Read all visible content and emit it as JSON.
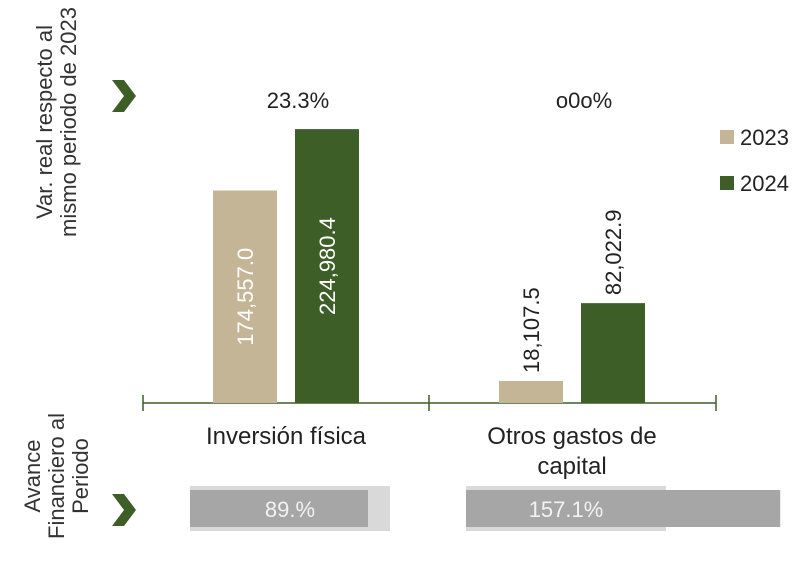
{
  "chart_data": {
    "type": "bar",
    "categories": [
      "Inversión física",
      "Otros gastos de capital"
    ],
    "series": [
      {
        "name": "2023",
        "color": "#c4b596",
        "values": [
          174557.0,
          18107.5
        ],
        "value_labels": [
          "174,557.0",
          "18,107.5"
        ]
      },
      {
        "name": "2024",
        "color": "#3d5e27",
        "values": [
          224980.4,
          82022.9
        ],
        "value_labels": [
          "224,980.4",
          "82,022.9"
        ]
      }
    ],
    "ylim": [
      0,
      230000
    ],
    "variation_label": "Var. real respecto al mismo periodo de 2023",
    "variation": [
      "23.3%",
      "o0o%"
    ],
    "progress_label": "Avance Financiero al Periodo",
    "progress_lim": [
      0,
      100
    ],
    "progress": [
      {
        "value": 89,
        "label": "89.%"
      },
      {
        "value": 157.1,
        "label": "157.1%"
      }
    ],
    "legend": "right"
  }
}
